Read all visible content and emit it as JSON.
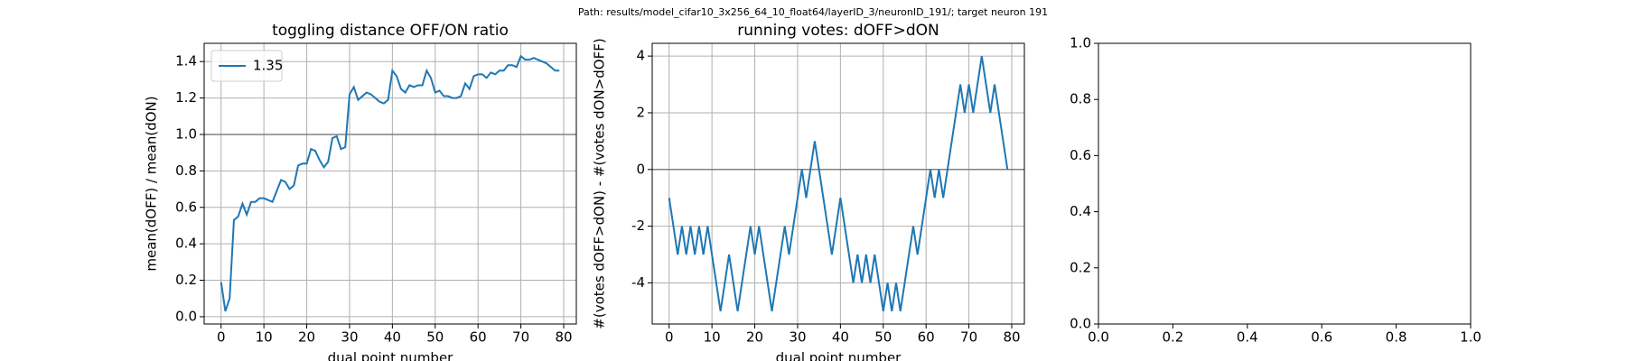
{
  "suptitle": "Path: results/model_cifar10_3x256_64_10_float64/layerID_3/neuronID_191/; target neuron 191",
  "chart_data": [
    {
      "type": "line",
      "title": "toggling distance OFF/ON ratio",
      "x_label": "dual point number",
      "y_label": "mean(dOFF) / mean(dON)",
      "x": [
        0,
        1,
        2,
        3,
        4,
        5,
        6,
        7,
        8,
        9,
        10,
        11,
        12,
        13,
        14,
        15,
        16,
        17,
        18,
        19,
        20,
        21,
        22,
        23,
        24,
        25,
        26,
        27,
        28,
        29,
        30,
        31,
        32,
        33,
        34,
        35,
        36,
        37,
        38,
        39,
        40,
        41,
        42,
        43,
        44,
        45,
        46,
        47,
        48,
        49,
        50,
        51,
        52,
        53,
        54,
        55,
        56,
        57,
        58,
        59,
        60,
        61,
        62,
        63,
        64,
        65,
        66,
        67,
        68,
        69,
        70,
        71,
        72,
        73,
        74,
        75,
        76,
        77,
        78,
        79
      ],
      "series": [
        {
          "name": "1.35",
          "color": "#1f77b4",
          "values": [
            0.19,
            0.03,
            0.1,
            0.53,
            0.55,
            0.62,
            0.56,
            0.63,
            0.63,
            0.65,
            0.65,
            0.64,
            0.63,
            0.69,
            0.75,
            0.74,
            0.7,
            0.72,
            0.83,
            0.84,
            0.84,
            0.92,
            0.91,
            0.86,
            0.82,
            0.85,
            0.98,
            0.99,
            0.92,
            0.93,
            1.22,
            1.26,
            1.19,
            1.21,
            1.23,
            1.22,
            1.2,
            1.18,
            1.17,
            1.19,
            1.35,
            1.32,
            1.25,
            1.23,
            1.27,
            1.26,
            1.27,
            1.27,
            1.35,
            1.31,
            1.23,
            1.24,
            1.21,
            1.21,
            1.2,
            1.2,
            1.21,
            1.28,
            1.25,
            1.32,
            1.33,
            1.33,
            1.31,
            1.34,
            1.33,
            1.35,
            1.35,
            1.38,
            1.38,
            1.37,
            1.43,
            1.41,
            1.41,
            1.42,
            1.41,
            1.4,
            1.39,
            1.37,
            1.35,
            1.35
          ]
        }
      ],
      "hline": 1,
      "hline_color": "#808080",
      "xlim": [
        -3.95,
        82.95
      ],
      "xticks": [
        0,
        10,
        20,
        30,
        40,
        50,
        60,
        70,
        80
      ],
      "ylim": [
        -0.04,
        1.5
      ],
      "yticks": [
        {
          "value": 0,
          "label": "0.0"
        },
        {
          "value": 0.2,
          "label": "0.2"
        },
        {
          "value": 0.4,
          "label": "0.4"
        },
        {
          "value": 0.6,
          "label": "0.6"
        },
        {
          "value": 0.8,
          "label": "0.8"
        },
        {
          "value": 1,
          "label": "1.0"
        },
        {
          "value": 1.2,
          "label": "1.2"
        },
        {
          "value": 1.4,
          "label": "1.4"
        }
      ],
      "grid": true,
      "legend": "upper left"
    },
    {
      "type": "line",
      "title": "running votes: dOFF>dON",
      "x_label": "dual point number",
      "y_label": "#(votes dOFF>dON) - #(votes dON>dOFF)",
      "x": [
        0,
        1,
        2,
        3,
        4,
        5,
        6,
        7,
        8,
        9,
        10,
        11,
        12,
        13,
        14,
        15,
        16,
        17,
        18,
        19,
        20,
        21,
        22,
        23,
        24,
        25,
        26,
        27,
        28,
        29,
        30,
        31,
        32,
        33,
        34,
        35,
        36,
        37,
        38,
        39,
        40,
        41,
        42,
        43,
        44,
        45,
        46,
        47,
        48,
        49,
        50,
        51,
        52,
        53,
        54,
        55,
        56,
        57,
        58,
        59,
        60,
        61,
        62,
        63,
        64,
        65,
        66,
        67,
        68,
        69,
        70,
        71,
        72,
        73,
        74,
        75,
        76,
        77,
        78,
        79
      ],
      "series": [
        {
          "color": "#1f77b4",
          "values": [
            -1,
            -2,
            -3,
            -2,
            -3,
            -2,
            -3,
            -2,
            -3,
            -2,
            -3,
            -4,
            -5,
            -4,
            -3,
            -4,
            -5,
            -4,
            -3,
            -2,
            -3,
            -2,
            -3,
            -4,
            -5,
            -4,
            -3,
            -2,
            -3,
            -2,
            -1,
            0,
            -1,
            0,
            1,
            0,
            -1,
            -2,
            -3,
            -2,
            -1,
            -2,
            -3,
            -4,
            -3,
            -4,
            -3,
            -4,
            -3,
            -4,
            -5,
            -4,
            -5,
            -4,
            -5,
            -4,
            -3,
            -2,
            -3,
            -2,
            -1,
            0,
            -1,
            0,
            -1,
            0,
            1,
            2,
            3,
            2,
            3,
            2,
            3,
            4,
            3,
            2,
            3,
            2,
            1,
            0
          ]
        }
      ],
      "hline": 0,
      "hline_color": "#808080",
      "xlim": [
        -3.95,
        82.95
      ],
      "xticks": [
        0,
        10,
        20,
        30,
        40,
        50,
        60,
        70,
        80
      ],
      "ylim": [
        -5.45,
        4.45
      ],
      "yticks": [
        -4,
        -2,
        0,
        2,
        4
      ],
      "grid": true
    },
    {
      "type": "empty",
      "xlim": [
        0,
        1
      ],
      "xticks": [
        {
          "value": 0,
          "label": "0.0"
        },
        {
          "value": 0.2,
          "label": "0.2"
        },
        {
          "value": 0.4,
          "label": "0.4"
        },
        {
          "value": 0.6,
          "label": "0.6"
        },
        {
          "value": 0.8,
          "label": "0.8"
        },
        {
          "value": 1,
          "label": "1.0"
        }
      ],
      "ylim": [
        0,
        1
      ],
      "yticks": [
        {
          "value": 0,
          "label": "0.0"
        },
        {
          "value": 0.2,
          "label": "0.2"
        },
        {
          "value": 0.4,
          "label": "0.4"
        },
        {
          "value": 0.6,
          "label": "0.6"
        },
        {
          "value": 0.8,
          "label": "0.8"
        },
        {
          "value": 1,
          "label": "1.0"
        }
      ],
      "grid": false
    }
  ]
}
